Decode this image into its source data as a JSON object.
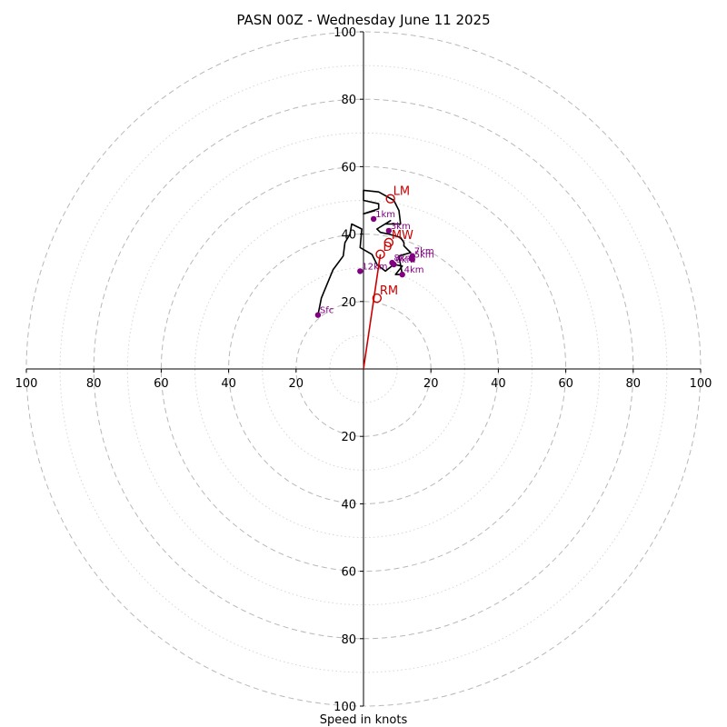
{
  "chart_data": {
    "type": "hodograph",
    "title": "PASN 00Z - Wednesday June 11 2025",
    "xlabel": "Speed in knots",
    "range": [
      -100,
      100
    ],
    "major_rings": [
      20,
      40,
      60,
      80,
      100
    ],
    "minor_rings": [
      10,
      30,
      50,
      70,
      90
    ],
    "tick_labels": {
      "x": [
        "100",
        "80",
        "60",
        "40",
        "20",
        "20",
        "40",
        "60",
        "80",
        "100"
      ],
      "y": [
        "100",
        "80",
        "60",
        "40",
        "20",
        "20",
        "40",
        "60",
        "80",
        "100"
      ]
    },
    "tick_values": {
      "x": [
        -100,
        -80,
        -60,
        -40,
        -20,
        20,
        40,
        60,
        80,
        100
      ],
      "y": [
        100,
        80,
        60,
        40,
        20,
        -20,
        -40,
        -60,
        -80,
        -100
      ]
    },
    "hodograph_trace": [
      [
        -13.5,
        16
      ],
      [
        -12.5,
        21
      ],
      [
        -9,
        29.5
      ],
      [
        -7.5,
        31.5
      ],
      [
        -6,
        33.5
      ],
      [
        -5.5,
        37.5
      ],
      [
        -4,
        40
      ],
      [
        -3.5,
        43
      ],
      [
        -0.5,
        41.5
      ],
      [
        -1,
        36
      ],
      [
        2.5,
        34
      ],
      [
        4,
        31
      ],
      [
        6.5,
        29
      ],
      [
        9,
        31
      ],
      [
        11.5,
        30.5
      ],
      [
        9.5,
        28
      ],
      [
        11.5,
        28
      ],
      [
        10.5,
        33.5
      ],
      [
        14,
        34.5
      ],
      [
        12,
        36.5
      ],
      [
        12,
        37.5
      ],
      [
        11,
        39
      ],
      [
        7.5,
        40
      ],
      [
        5,
        40.5
      ],
      [
        4,
        41.5
      ],
      [
        8,
        44
      ],
      [
        6.5,
        43
      ],
      [
        11,
        43
      ],
      [
        10.5,
        47
      ],
      [
        9,
        50
      ],
      [
        4.5,
        52.5
      ],
      [
        0,
        53
      ],
      [
        0,
        50
      ],
      [
        4.5,
        49
      ],
      [
        4.5,
        47.5
      ],
      [
        0,
        46
      ],
      [
        3.5,
        47
      ]
    ],
    "height_markers": [
      {
        "label": "Sfc",
        "u": -13.5,
        "v": 16
      },
      {
        "label": "12km",
        "u": -1,
        "v": 29
      },
      {
        "label": "1km",
        "u": 3,
        "v": 44.5
      },
      {
        "label": "3km",
        "u": 7.5,
        "v": 41
      },
      {
        "label": "5km",
        "u": 14.5,
        "v": 32.5
      },
      {
        "label": "7km",
        "u": 14.5,
        "v": 33.5
      },
      {
        "label": "4km",
        "u": 11.5,
        "v": 28
      },
      {
        "label": "6km",
        "u": 9,
        "v": 31
      },
      {
        "label": "8km",
        "u": 8.5,
        "v": 31.5
      }
    ],
    "motion_markers": [
      {
        "label": "LM",
        "u": 8,
        "v": 50.5
      },
      {
        "label": "MW",
        "u": 7.5,
        "v": 37.5
      },
      {
        "label": "D",
        "u": 5,
        "v": 34
      },
      {
        "label": "RM",
        "u": 4,
        "v": 21
      }
    ],
    "shear_vector": {
      "from": [
        0,
        0
      ],
      "to": [
        5,
        34
      ]
    },
    "colors": {
      "trace": "#000000",
      "markers": "#800080",
      "motion": "#cc0000",
      "ring": "#b8b8b8",
      "minor_ring": "#d6d6d6"
    }
  }
}
